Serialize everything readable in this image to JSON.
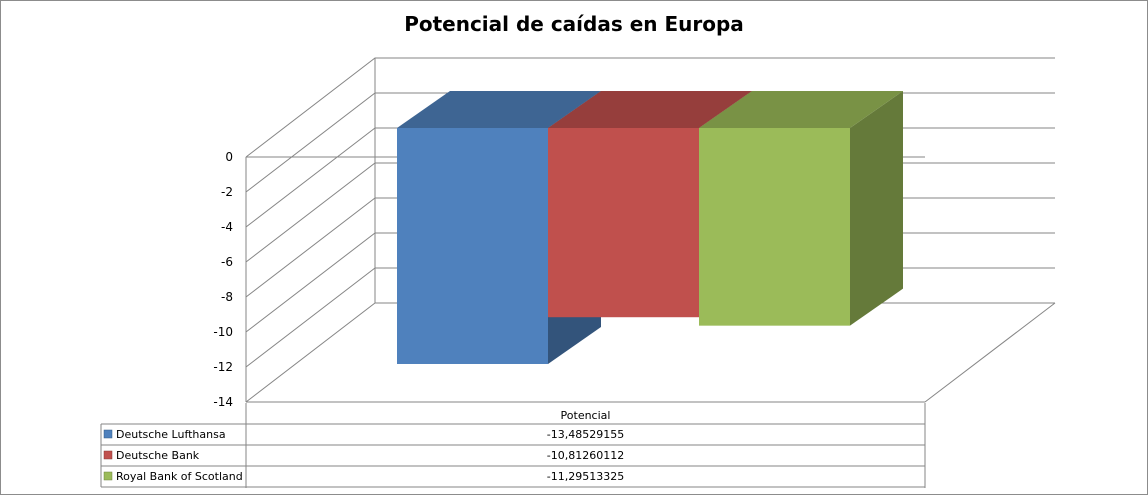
{
  "chart_data": {
    "type": "bar",
    "title": "Potencial de caídas en Europa",
    "categories": [
      "Potencial"
    ],
    "series": [
      {
        "name": "Deutsche Lufthansa",
        "values": [
          -13.48529155
        ],
        "label": "-13,48529155",
        "color": "#4f81bd"
      },
      {
        "name": "Deutsche Bank",
        "values": [
          -10.81260112
        ],
        "label": "-10,81260112",
        "color": "#c0504d"
      },
      {
        "name": "Royal Bank of Scotland",
        "values": [
          -11.29513325
        ],
        "label": "-11,29513325",
        "color": "#9bbb59"
      }
    ],
    "ylim": [
      -14,
      0
    ],
    "yticks": [
      "0",
      "-2",
      "-4",
      "-6",
      "-8",
      "-10",
      "-12",
      "-14"
    ],
    "grid": true,
    "legend": "data-table"
  }
}
